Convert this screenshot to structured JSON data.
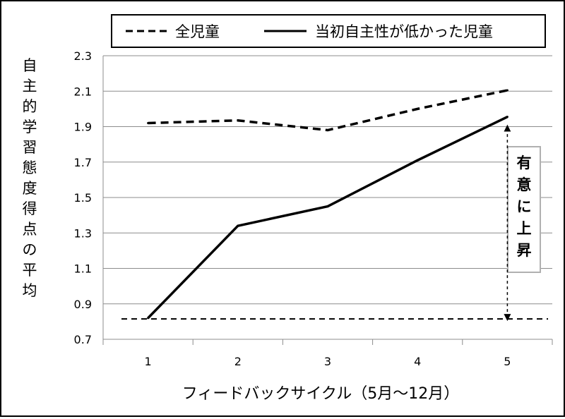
{
  "chart_data": {
    "type": "line",
    "title": "",
    "xlabel": "フィードバックサイクル（5月〜12月）",
    "ylabel": "自主的学習態度得点の平均",
    "categories": [
      "1",
      "2",
      "3",
      "4",
      "5"
    ],
    "ylim": [
      0.7,
      2.3
    ],
    "yticks": [
      "0.7",
      "0.9",
      "1.1",
      "1.3",
      "1.5",
      "1.7",
      "1.9",
      "2.1",
      "2.3"
    ],
    "grid": true,
    "legend_position": "top",
    "series": [
      {
        "name": "全児童",
        "style": "dashed",
        "color": "#000000",
        "values": [
          1.92,
          1.935,
          1.88,
          2.0,
          2.105
        ]
      },
      {
        "name": "当初自主性が低かった児童",
        "style": "solid",
        "color": "#000000",
        "values": [
          0.82,
          1.34,
          1.45,
          1.71,
          1.955
        ]
      }
    ],
    "reference_line": {
      "value": 0.815,
      "style": "dashed"
    },
    "annotation": {
      "text": "有意に上昇",
      "from_value": 0.815,
      "to_value": 1.955,
      "at_category": "5"
    }
  }
}
